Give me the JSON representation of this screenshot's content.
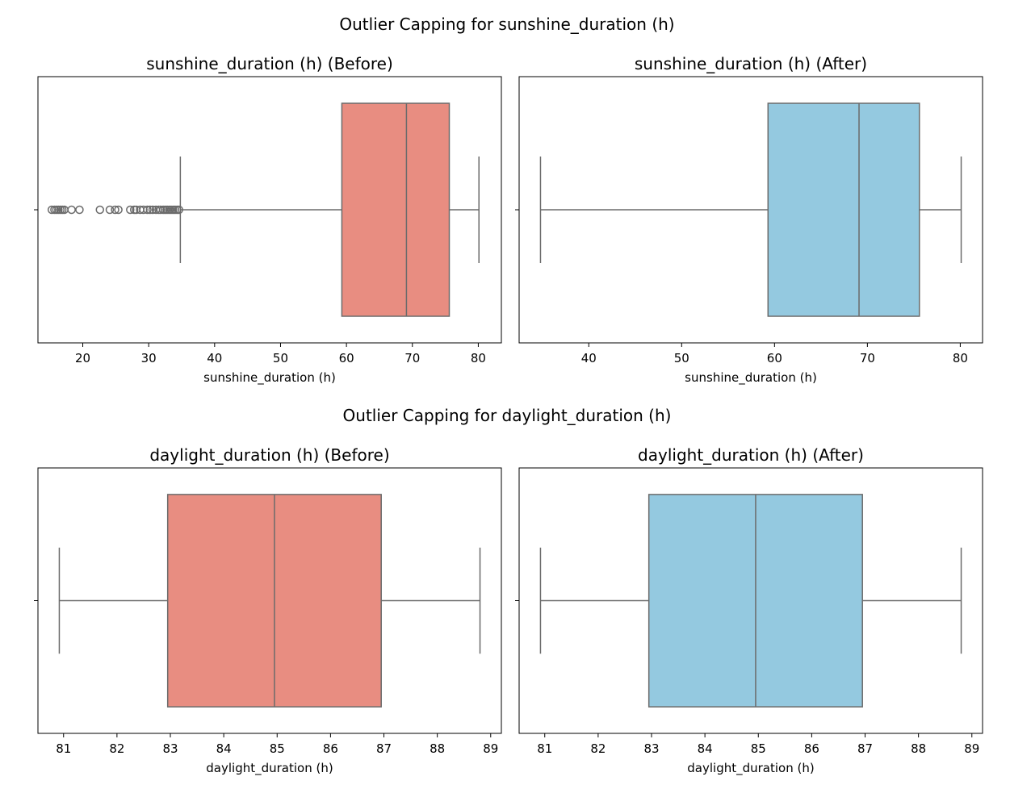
{
  "figure": {
    "suptitles": [
      "Outlier Capping for sunshine_duration (h)",
      "Outlier Capping for daylight_duration (h)"
    ]
  },
  "colors": {
    "before_box": "#e88d81",
    "after_box": "#94c9e0",
    "line": "#6b6b6b"
  },
  "chart_data": [
    {
      "type": "box",
      "title": "sunshine_duration (h) (Before)",
      "xlabel": "sunshine_duration (h)",
      "xlim": [
        13.2,
        83.5
      ],
      "xticks": [
        20,
        30,
        40,
        50,
        60,
        70,
        80
      ],
      "box": {
        "q1": 59.3,
        "median": 69.1,
        "q3": 75.6,
        "whisker_low": 34.8,
        "whisker_high": 80.1
      },
      "outliers": [
        15.3,
        15.7,
        16.0,
        16.3,
        16.6,
        16.9,
        17.2,
        18.3,
        19.5,
        22.6,
        24.1,
        24.9,
        25.4,
        27.2,
        27.8,
        28.1,
        28.7,
        29.2,
        29.8,
        30.2,
        30.6,
        31.1,
        31.5,
        31.8,
        32.2,
        32.5,
        32.8,
        33.1,
        33.4,
        33.7,
        34.0,
        34.3,
        34.6
      ],
      "color": "before"
    },
    {
      "type": "box",
      "title": "sunshine_duration (h) (After)",
      "xlabel": "sunshine_duration (h)",
      "xlim": [
        32.5,
        82.4
      ],
      "xticks": [
        40,
        50,
        60,
        70,
        80
      ],
      "box": {
        "q1": 59.3,
        "median": 69.1,
        "q3": 75.6,
        "whisker_low": 34.8,
        "whisker_high": 80.1
      },
      "outliers": [],
      "color": "after"
    },
    {
      "type": "box",
      "title": "daylight_duration (h) (Before)",
      "xlabel": "daylight_duration (h)",
      "xlim": [
        80.52,
        89.2
      ],
      "xticks": [
        81,
        82,
        83,
        84,
        85,
        86,
        87,
        88,
        89
      ],
      "box": {
        "q1": 82.95,
        "median": 84.95,
        "q3": 86.95,
        "whisker_low": 80.92,
        "whisker_high": 88.8
      },
      "outliers": [],
      "color": "before"
    },
    {
      "type": "box",
      "title": "daylight_duration (h) (After)",
      "xlabel": "daylight_duration (h)",
      "xlim": [
        80.52,
        89.2
      ],
      "xticks": [
        81,
        82,
        83,
        84,
        85,
        86,
        87,
        88,
        89
      ],
      "box": {
        "q1": 82.95,
        "median": 84.95,
        "q3": 86.95,
        "whisker_low": 80.92,
        "whisker_high": 88.8
      },
      "outliers": [],
      "color": "after"
    }
  ]
}
